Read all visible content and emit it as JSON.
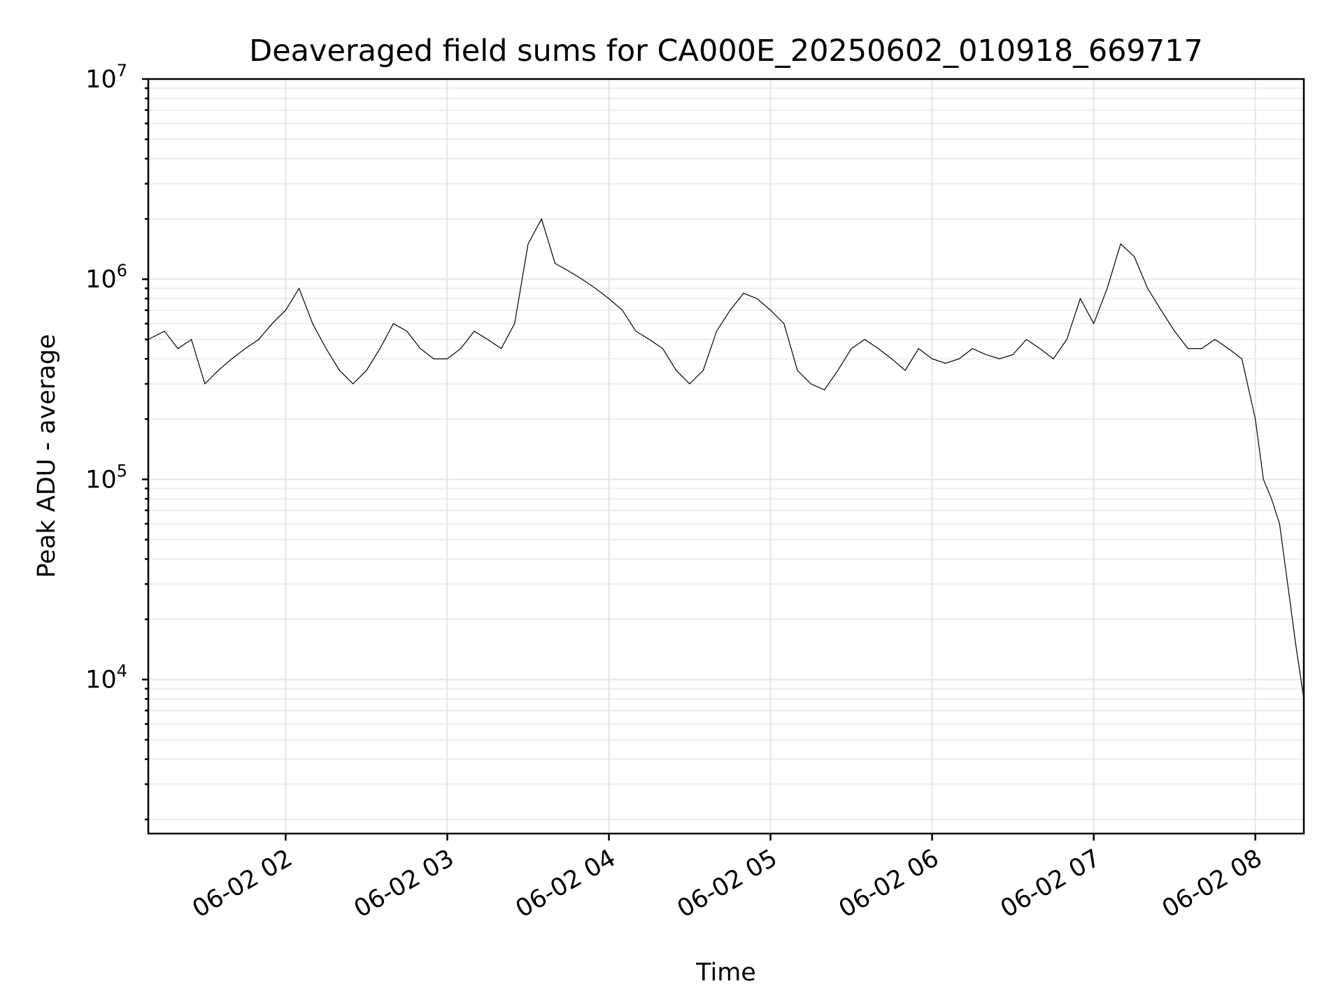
{
  "chart_data": {
    "type": "line",
    "title": "Deaveraged field sums for CA000E_20250602_010918_669717",
    "xlabel": "Time",
    "ylabel": "Peak ADU - average",
    "yscale": "log",
    "grid": true,
    "line_color": "#000000",
    "grid_color": "#e6e6e6",
    "xlim": [
      "2025-06-02 01:09",
      "2025-06-02 08:18"
    ],
    "ylim": [
      1700,
      10000000
    ],
    "x_ticks": [
      {
        "t": "2025-06-02 02:00",
        "label": "06-02 02"
      },
      {
        "t": "2025-06-02 03:00",
        "label": "06-02 03"
      },
      {
        "t": "2025-06-02 04:00",
        "label": "06-02 04"
      },
      {
        "t": "2025-06-02 05:00",
        "label": "06-02 05"
      },
      {
        "t": "2025-06-02 06:00",
        "label": "06-02 06"
      },
      {
        "t": "2025-06-02 07:00",
        "label": "06-02 07"
      },
      {
        "t": "2025-06-02 08:00",
        "label": "06-02 08"
      }
    ],
    "y_ticks": [
      {
        "value": 10000,
        "base": "10",
        "exp": "4"
      },
      {
        "value": 100000,
        "base": "10",
        "exp": "5"
      },
      {
        "value": 1000000,
        "base": "10",
        "exp": "6"
      },
      {
        "value": 10000000,
        "base": "10",
        "exp": "7"
      }
    ],
    "series": [
      {
        "x": [
          "2025-06-02 01:09",
          "2025-06-02 01:15",
          "2025-06-02 01:20",
          "2025-06-02 01:25",
          "2025-06-02 01:30",
          "2025-06-02 01:35",
          "2025-06-02 01:40",
          "2025-06-02 01:45",
          "2025-06-02 01:50",
          "2025-06-02 01:55",
          "2025-06-02 02:00",
          "2025-06-02 02:05",
          "2025-06-02 02:10",
          "2025-06-02 02:15",
          "2025-06-02 02:20",
          "2025-06-02 02:25",
          "2025-06-02 02:30",
          "2025-06-02 02:35",
          "2025-06-02 02:40",
          "2025-06-02 02:45",
          "2025-06-02 02:50",
          "2025-06-02 02:55",
          "2025-06-02 03:00",
          "2025-06-02 03:05",
          "2025-06-02 03:10",
          "2025-06-02 03:15",
          "2025-06-02 03:20",
          "2025-06-02 03:25",
          "2025-06-02 03:30",
          "2025-06-02 03:35",
          "2025-06-02 03:40",
          "2025-06-02 03:45",
          "2025-06-02 03:50",
          "2025-06-02 03:55",
          "2025-06-02 04:00",
          "2025-06-02 04:05",
          "2025-06-02 04:10",
          "2025-06-02 04:15",
          "2025-06-02 04:20",
          "2025-06-02 04:25",
          "2025-06-02 04:30",
          "2025-06-02 04:35",
          "2025-06-02 04:40",
          "2025-06-02 04:45",
          "2025-06-02 04:50",
          "2025-06-02 04:55",
          "2025-06-02 05:00",
          "2025-06-02 05:05",
          "2025-06-02 05:10",
          "2025-06-02 05:15",
          "2025-06-02 05:20",
          "2025-06-02 05:25",
          "2025-06-02 05:30",
          "2025-06-02 05:35",
          "2025-06-02 05:40",
          "2025-06-02 05:45",
          "2025-06-02 05:50",
          "2025-06-02 05:55",
          "2025-06-02 06:00",
          "2025-06-02 06:05",
          "2025-06-02 06:10",
          "2025-06-02 06:15",
          "2025-06-02 06:20",
          "2025-06-02 06:25",
          "2025-06-02 06:30",
          "2025-06-02 06:35",
          "2025-06-02 06:40",
          "2025-06-02 06:45",
          "2025-06-02 06:50",
          "2025-06-02 06:55",
          "2025-06-02 07:00",
          "2025-06-02 07:05",
          "2025-06-02 07:10",
          "2025-06-02 07:15",
          "2025-06-02 07:20",
          "2025-06-02 07:25",
          "2025-06-02 07:30",
          "2025-06-02 07:35",
          "2025-06-02 07:40",
          "2025-06-02 07:45",
          "2025-06-02 07:50",
          "2025-06-02 07:55",
          "2025-06-02 08:00",
          "2025-06-02 08:03",
          "2025-06-02 08:06",
          "2025-06-02 08:09",
          "2025-06-02 08:12",
          "2025-06-02 08:15",
          "2025-06-02 08:18"
        ],
        "y": [
          500000,
          550000,
          450000,
          500000,
          300000,
          350000,
          400000,
          450000,
          500000,
          600000,
          700000,
          900000,
          600000,
          450000,
          350000,
          300000,
          350000,
          450000,
          600000,
          550000,
          450000,
          400000,
          400000,
          450000,
          550000,
          500000,
          450000,
          600000,
          1500000,
          2000000,
          1200000,
          1100000,
          1000000,
          900000,
          800000,
          700000,
          550000,
          500000,
          450000,
          350000,
          300000,
          350000,
          550000,
          700000,
          850000,
          800000,
          700000,
          600000,
          350000,
          300000,
          280000,
          350000,
          450000,
          500000,
          450000,
          400000,
          350000,
          450000,
          400000,
          380000,
          400000,
          450000,
          420000,
          400000,
          420000,
          500000,
          450000,
          400000,
          500000,
          800000,
          600000,
          900000,
          1500000,
          1300000,
          900000,
          700000,
          550000,
          450000,
          450000,
          500000,
          450000,
          400000,
          200000,
          100000,
          80000,
          60000,
          30000,
          15000,
          8000
        ]
      }
    ]
  }
}
